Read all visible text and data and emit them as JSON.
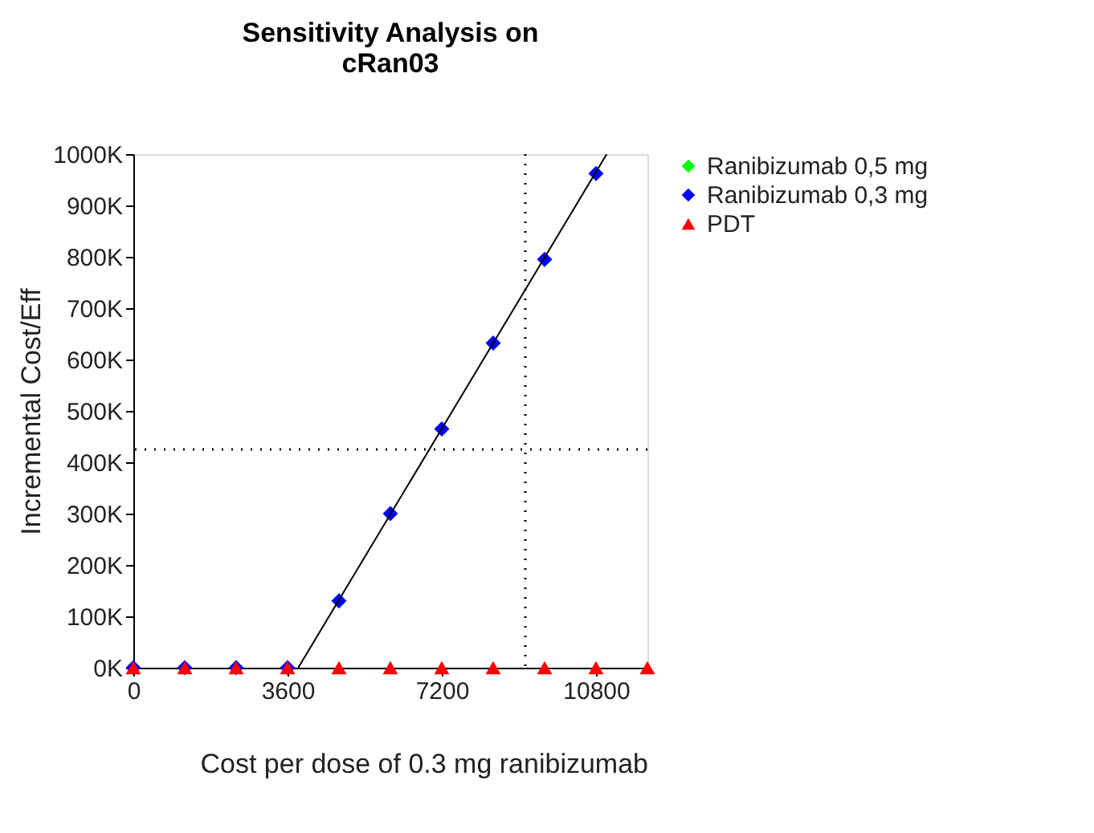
{
  "chart_data": {
    "type": "scatter",
    "title": [
      "Sensitivity Analysis on",
      "cRan03"
    ],
    "xlabel": "Cost per dose of 0.3 mg ranibizumab",
    "ylabel": "Incremental Cost/Eff",
    "x": [
      0,
      1200,
      2400,
      3600,
      4800,
      6000,
      7200,
      8400,
      9600,
      10800,
      12000
    ],
    "series": [
      {
        "name": "Ranibizumab 0,5 mg",
        "color": "#00ff00",
        "marker": "diamond",
        "values": [
          null,
          null,
          null,
          null,
          null,
          null,
          null,
          null,
          null,
          null,
          null
        ]
      },
      {
        "name": "Ranibizumab 0,3 mg",
        "color": "#0000ff",
        "marker": "diamond",
        "values": [
          0,
          0,
          0,
          0,
          130000,
          300000,
          465000,
          632000,
          795000,
          962000,
          null
        ]
      },
      {
        "name": "PDT",
        "color": "#ff0000",
        "marker": "triangle",
        "values": [
          0,
          0,
          0,
          0,
          0,
          0,
          0,
          0,
          0,
          0,
          0
        ]
      },
      {
        "type": "line",
        "color": "#000000",
        "x": [
          3850,
          11050
        ],
        "values": [
          0,
          1000000
        ]
      }
    ],
    "xlim": [
      0,
      12000
    ],
    "xticks": [
      0,
      3600,
      7200,
      10800
    ],
    "ylim": [
      0,
      1000000
    ],
    "yticks": [
      {
        "value": 0,
        "label": "0K"
      },
      {
        "value": 100000,
        "label": "100K"
      },
      {
        "value": 200000,
        "label": "200K"
      },
      {
        "value": 300000,
        "label": "300K"
      },
      {
        "value": 400000,
        "label": "400K"
      },
      {
        "value": 500000,
        "label": "500K"
      },
      {
        "value": 600000,
        "label": "600K"
      },
      {
        "value": 700000,
        "label": "700K"
      },
      {
        "value": 800000,
        "label": "800K"
      },
      {
        "value": 900000,
        "label": "900K"
      },
      {
        "value": 1000000,
        "label": "1000K"
      }
    ],
    "ref_lines": [
      {
        "axis": "y",
        "value": 425000,
        "line_style": "dotted"
      },
      {
        "axis": "x",
        "value": 9150,
        "line_style": "dotted"
      }
    ],
    "legend": "top right",
    "grid": false
  }
}
